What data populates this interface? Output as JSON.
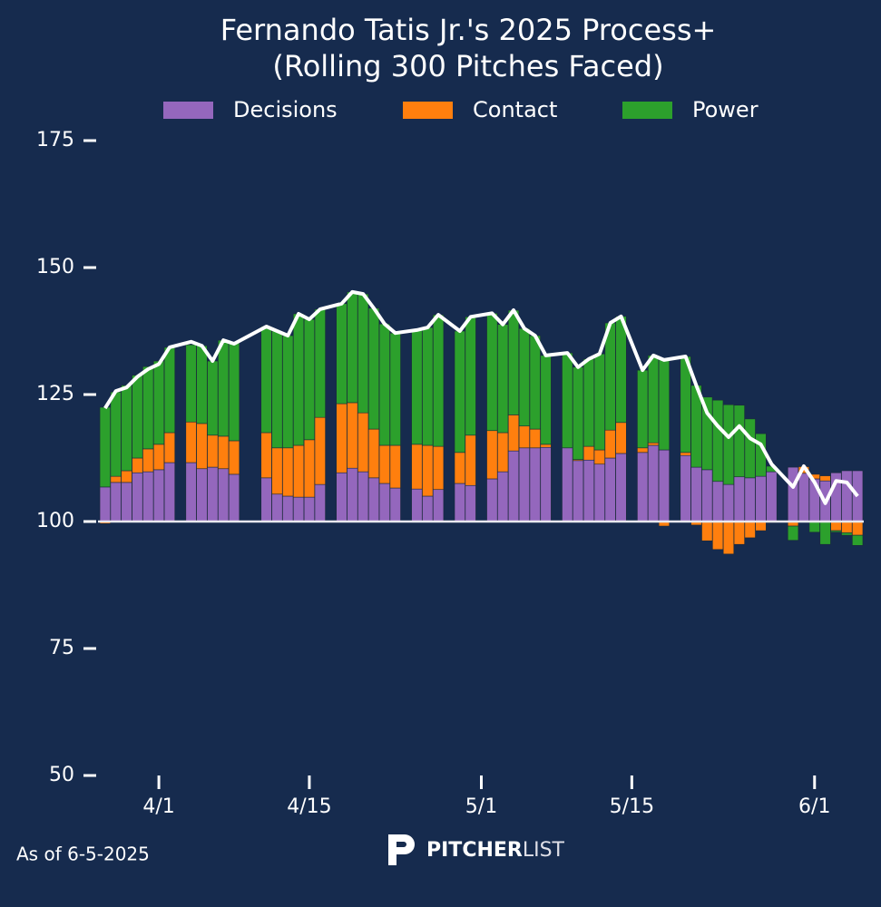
{
  "chart_data": {
    "type": "bar",
    "title": "Fernando Tatis Jr.'s 2025 Process+",
    "subtitle": "(Rolling 300 Pitches Faced)",
    "x": [
      "3/27",
      "3/28",
      "3/29",
      "3/30",
      "3/31",
      "4/1",
      "4/2",
      "4/4",
      "4/5",
      "4/6",
      "4/7",
      "4/8",
      "4/11",
      "4/12",
      "4/13",
      "4/14",
      "4/15",
      "4/16",
      "4/18",
      "4/19",
      "4/20",
      "4/21",
      "4/22",
      "4/23",
      "4/25",
      "4/26",
      "4/27",
      "4/29",
      "4/30",
      "5/2",
      "5/3",
      "5/4",
      "5/5",
      "5/6",
      "5/7",
      "5/9",
      "5/10",
      "5/11",
      "5/12",
      "5/13",
      "5/14",
      "5/16",
      "5/17",
      "5/18",
      "5/20",
      "5/21",
      "5/22",
      "5/23",
      "5/24",
      "5/25",
      "5/26",
      "5/27",
      "5/28",
      "5/30",
      "5/31",
      "6/1",
      "6/2",
      "6/3",
      "6/4",
      "6/5"
    ],
    "xlim": [
      "3/26",
      "6/6"
    ],
    "xticks": [
      "4/1",
      "4/15",
      "5/1",
      "5/15",
      "6/1"
    ],
    "ylim": [
      50,
      175
    ],
    "yticks": [
      50,
      75,
      100,
      125,
      150,
      175
    ],
    "baseline": 100,
    "baseline_color": "#e8e8ee",
    "series": [
      {
        "name": "Decisions",
        "color": "#9467bd",
        "values": [
          6.8,
          7.7,
          7.7,
          9.6,
          9.8,
          10.2,
          11.6,
          11.6,
          10.4,
          10.7,
          10.4,
          9.3,
          8.6,
          5.4,
          5,
          4.8,
          4.8,
          7.3,
          9.6,
          10.5,
          9.8,
          8.6,
          7.5,
          6.6,
          6.4,
          5,
          6.3,
          7.5,
          7.1,
          8.4,
          9.8,
          13.9,
          14.5,
          14.5,
          14.6,
          14.5,
          12,
          12.1,
          11.3,
          12.5,
          13.4,
          13.6,
          15,
          14.1,
          13,
          10.7,
          10.2,
          7.9,
          7.3,
          8.8,
          8.6,
          8.9,
          9.8,
          10.7,
          9.5,
          8.4,
          8,
          9.6,
          10,
          10
        ]
      },
      {
        "name": "Contact",
        "color": "#ff7f0e",
        "values": [
          -0.4,
          1.2,
          2.3,
          2.9,
          4.5,
          5,
          5.9,
          8,
          8.9,
          6.3,
          6.4,
          6.6,
          8.9,
          9.1,
          9.5,
          10.2,
          11.3,
          13.2,
          13.6,
          12.9,
          11.6,
          9.6,
          7.5,
          8.4,
          8.8,
          10,
          8.5,
          6.1,
          9.9,
          9.5,
          7.7,
          7.1,
          4.3,
          3.7,
          0.6,
          0,
          0.2,
          2.7,
          2.8,
          5.5,
          6.1,
          0.9,
          0.5,
          -0.9,
          0.6,
          -0.7,
          -3.8,
          -5.5,
          -6.4,
          -4.5,
          -3.2,
          -1.8,
          -0.2,
          -0.9,
          1.3,
          0.9,
          1,
          -1.8,
          -2.2,
          -2.7
        ]
      },
      {
        "name": "Power",
        "color": "#2ca02c",
        "values": [
          15.7,
          16.6,
          16.8,
          16.3,
          16.2,
          16.4,
          16.8,
          15.2,
          15.3,
          14.6,
          18.9,
          19.3,
          20.9,
          23,
          22.1,
          25.9,
          23.7,
          21.3,
          19.7,
          21.8,
          23.4,
          23.8,
          23.9,
          22.1,
          22.5,
          23.2,
          25.9,
          23.9,
          23.3,
          23.1,
          21.3,
          20.6,
          19.2,
          18.4,
          17.5,
          18.7,
          18.2,
          17.2,
          18.9,
          21.1,
          20.9,
          15.3,
          17.2,
          17.7,
          18.9,
          16.1,
          14.3,
          16,
          15.7,
          14.1,
          11.6,
          8.4,
          1.1,
          -2.8,
          0,
          -2.1,
          -4.5,
          -0.3,
          -0.5,
          -2
        ]
      }
    ],
    "line": {
      "color": "#ffffff",
      "values": [
        122.3,
        125.7,
        126.4,
        128.5,
        130,
        131,
        134.3,
        135.4,
        134.6,
        131.6,
        135.7,
        135,
        138.4,
        137.5,
        136.6,
        140.9,
        139.8,
        141.8,
        142.9,
        145.2,
        144.8,
        142,
        138.9,
        137.1,
        137.7,
        138.2,
        140.7,
        137.5,
        140.3,
        141,
        138.8,
        141.6,
        138,
        136.6,
        132.7,
        133.2,
        130.4,
        132,
        133,
        139.1,
        140.4,
        129.8,
        132.7,
        131.8,
        132.5,
        126.8,
        121.4,
        118.8,
        116.6,
        118.8,
        116.4,
        115.2,
        111.3,
        106.8,
        110.9,
        107.7,
        103.6,
        108,
        107.7,
        105
      ]
    }
  },
  "footer": "As of 6-5-2025",
  "logo": {
    "bold": "PITCHER",
    "light": "LIST"
  }
}
